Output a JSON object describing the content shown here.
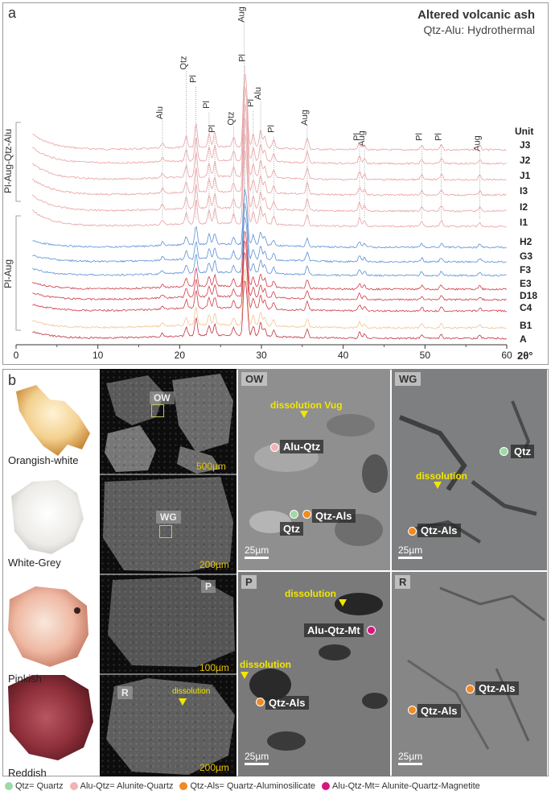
{
  "panel_a": {
    "letter": "a",
    "title": "Altered volcanic ash",
    "subtitle": "Qtz-Alu: Hydrothermal",
    "x_label": "2θ°",
    "unit_header": "Unit",
    "group_upper": "Pl-Aug-Qtz-Alu",
    "group_lower": "Pl-Aug",
    "peak_labels": [
      "Alu",
      "Qtz",
      "Pl",
      "Pl",
      "Pl",
      "Qtz",
      "Aug",
      "Pl",
      "Pl",
      "Alu",
      "Pl",
      "Aug",
      "Pl",
      "Aug",
      "Pl",
      "Pl",
      "Aug"
    ],
    "colors": {
      "pink": "#eaa1a4",
      "blue": "#5b8fd6",
      "red": "#cf3b47",
      "orange": "#f2c48f",
      "darkred": "#c23340"
    }
  },
  "chart_data": {
    "type": "line",
    "xlabel": "2θ°",
    "xlim": [
      0,
      60
    ],
    "x_ticks": [
      0,
      10,
      20,
      30,
      40,
      50,
      60
    ],
    "series": [
      {
        "name": "J3",
        "color": "pink"
      },
      {
        "name": "J2",
        "color": "pink"
      },
      {
        "name": "J1",
        "color": "pink"
      },
      {
        "name": "I3",
        "color": "pink"
      },
      {
        "name": "I2",
        "color": "pink"
      },
      {
        "name": "I1",
        "color": "pink"
      },
      {
        "name": "H2",
        "color": "blue"
      },
      {
        "name": "G3",
        "color": "blue"
      },
      {
        "name": "F3",
        "color": "blue"
      },
      {
        "name": "E3",
        "color": "red"
      },
      {
        "name": "D18",
        "color": "red"
      },
      {
        "name": "C4",
        "color": "red"
      },
      {
        "name": "B1",
        "color": "orange"
      },
      {
        "name": "A",
        "color": "darkred"
      }
    ],
    "peaks": [
      {
        "label": "Alu",
        "x": 17.9
      },
      {
        "label": "Qtz",
        "x": 20.8
      },
      {
        "label": "Pl",
        "x": 22.0
      },
      {
        "label": "Pl",
        "x": 23.6
      },
      {
        "label": "Pl",
        "x": 24.3
      },
      {
        "label": "Qtz",
        "x": 26.6
      },
      {
        "label": "Aug",
        "x": 27.9
      },
      {
        "label": "Pl",
        "x": 28.0
      },
      {
        "label": "Pl",
        "x": 29.0
      },
      {
        "label": "Alu",
        "x": 29.9
      },
      {
        "label": "Pl",
        "x": 31.5
      },
      {
        "label": "Aug",
        "x": 35.6
      },
      {
        "label": "Pl",
        "x": 42.0
      },
      {
        "label": "Aug",
        "x": 42.6
      },
      {
        "label": "Pl",
        "x": 49.6
      },
      {
        "label": "Pl",
        "x": 52.0
      },
      {
        "label": "Aug",
        "x": 56.7
      }
    ]
  },
  "panel_b": {
    "letter": "b",
    "samples": [
      "Orangish-white",
      "White-Grey",
      "Pinkish",
      "Reddish"
    ],
    "overview_labels": [
      "OW",
      "WG",
      "P",
      "R"
    ],
    "overview_scales": [
      "500µm",
      "200µm",
      "100µm",
      "200µm"
    ],
    "overview_dissolution": "dissolution",
    "micro": {
      "ow": {
        "label": "OW",
        "vug": "dissolution Vug",
        "alu_qtz": "Alu-Qtz",
        "qtz": "Qtz",
        "qtz_als": "Qtz-Als",
        "scale": "25µm"
      },
      "wg": {
        "label": "WG",
        "qtz": "Qtz",
        "dissolution": "dissolution",
        "qtz_als": "Qtz-Als",
        "scale": "25µm"
      },
      "p": {
        "label": "P",
        "dissolution1": "dissolution",
        "dissolution2": "dissolution",
        "alu_qtz_mt": "Alu-Qtz-Mt",
        "qtz_als": "Qtz-Als",
        "scale": "25µm"
      },
      "r": {
        "label": "R",
        "qtz_als1": "Qtz-Als",
        "qtz_als2": "Qtz-Als",
        "scale": "25µm"
      }
    }
  },
  "legend": [
    {
      "text": "Qtz= Quartz",
      "color": "#9fd9a6"
    },
    {
      "text": "Alu-Qtz= Alunite-Quartz",
      "color": "#f2b3b8"
    },
    {
      "text": "Qtz-Als= Quartz-Aluminosilicate",
      "color": "#f08a24"
    },
    {
      "text": "Alu-Qtz-Mt= Alunite-Quartz-Magnetite",
      "color": "#d6157e"
    }
  ]
}
